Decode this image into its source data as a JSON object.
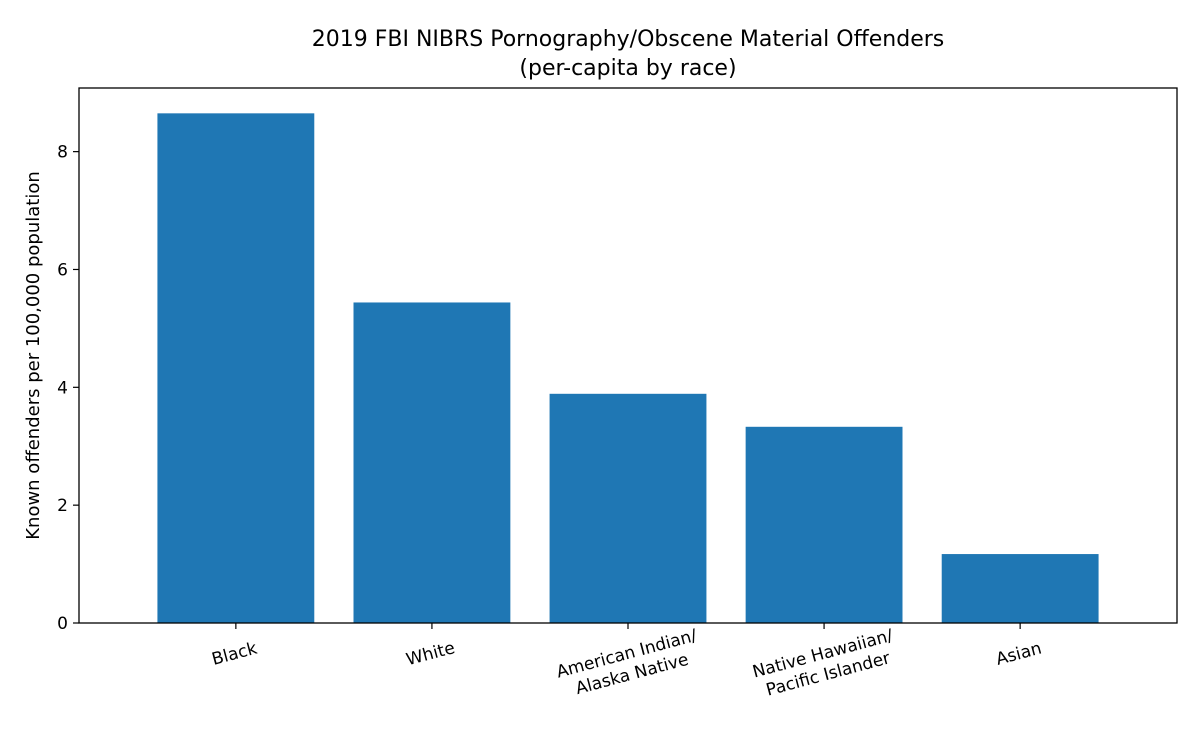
{
  "chart_data": {
    "type": "bar",
    "title": "2019 FBI NIBRS Pornography/Obscene Material Offenders",
    "subtitle": "(per-capita by race)",
    "xlabel": "",
    "ylabel": "Known offenders per 100,000 population",
    "categories": [
      [
        "Black"
      ],
      [
        "White"
      ],
      [
        "American Indian/",
        "Alaska Native"
      ],
      [
        "Native Hawaiian/",
        "Pacific Islander"
      ],
      [
        "Asian"
      ]
    ],
    "values": [
      8.65,
      5.44,
      3.89,
      3.33,
      1.17
    ],
    "ylim": [
      0,
      9.08
    ],
    "yticks": [
      0,
      2,
      4,
      6,
      8
    ],
    "bar_color": "#1f77b4",
    "grid": false,
    "legend": "none"
  }
}
